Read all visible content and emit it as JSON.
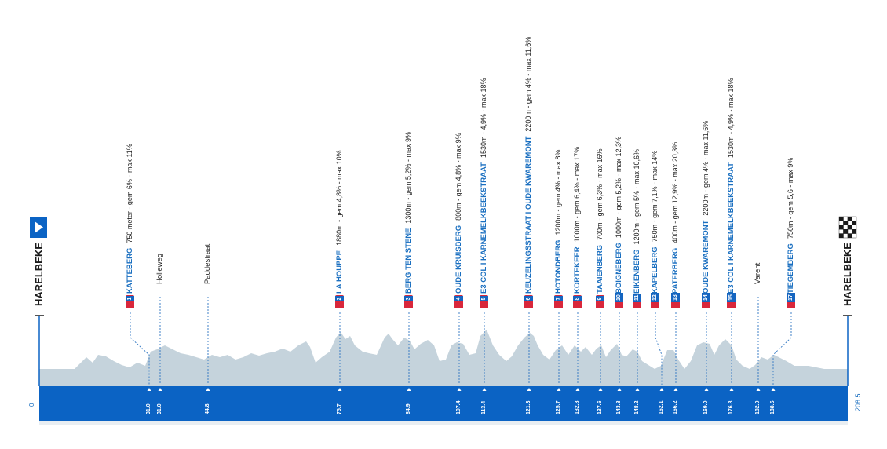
{
  "start_city": "HARELBEKE",
  "finish_city": "HARELBEKE",
  "distance_start": "0",
  "distance_end": "208.5",
  "colors": {
    "bar": "#0b63c4",
    "terrain": "#c5d3dc",
    "accent_red": "#d9273b",
    "climb_blue": "#1a6fc0"
  },
  "icons": {
    "start": "start-play-icon",
    "finish": "chequered-flag-icon"
  },
  "markers": [
    {
      "km": "31.0",
      "kind": "climb",
      "num": "1",
      "name": "KATTEBERG",
      "info": "750 meter  -  gem 6%  -  max 11%"
    },
    {
      "km": "31.0",
      "kind": "place",
      "name": "Holleweg"
    },
    {
      "km": "44.8",
      "kind": "place",
      "name": "Paddestraat"
    },
    {
      "km": "75.7",
      "kind": "climb",
      "num": "2",
      "name": "LA HOUPPE",
      "info": "1880m  -  gem 4,8%  -  max 10%"
    },
    {
      "km": "84.9",
      "kind": "climb",
      "num": "3",
      "name": "BERG TEN STENE",
      "info": "1300m  -  gem 5,2%  -  max 9%"
    },
    {
      "km": "107.4",
      "kind": "climb",
      "num": "4",
      "name": "OUDE KRUISBERG",
      "info": "800m  -  gem 4,8%  -  max 9%"
    },
    {
      "km": "113.4",
      "kind": "climb",
      "num": "5",
      "name": "E3 COL I KARNEMELKBEEKSTRAAT",
      "info": "1530m  -  4,9%  -  max 18%"
    },
    {
      "km": "121.3",
      "kind": "climb",
      "num": "6",
      "name": "KEUZELINGSSTRAAT I OUDE KWAREMONT",
      "info": "2200m  -  gem 4%  -  max 11,6%"
    },
    {
      "km": "125.7",
      "kind": "climb",
      "num": "7",
      "name": "HOTONDBERG",
      "info": "1200m  -  gem 4%  -  max 8%"
    },
    {
      "km": "132.8",
      "kind": "climb",
      "num": "8",
      "name": "KORTEKEER",
      "info": "1000m  -  gem 6,4%  -  max 17%"
    },
    {
      "km": "137.6",
      "kind": "climb",
      "num": "9",
      "name": "TAAIENBERG",
      "info": "700m  -  gem 6,3%  -  max 16%"
    },
    {
      "km": "143.8",
      "kind": "climb",
      "num": "10",
      "name": "BOIGNEBERG",
      "info": "1000m  -  gem 5,2%  -  max 12,3%"
    },
    {
      "km": "148.2",
      "kind": "climb",
      "num": "11",
      "name": "EIKENBERG",
      "info": "1200m  -  gem 5%  -  max 10,6%"
    },
    {
      "km": "162.1",
      "kind": "climb",
      "num": "12",
      "name": "KAPELBERG",
      "info": "750m  -  gem 7,1%  -  max 14%"
    },
    {
      "km": "166.2",
      "kind": "climb",
      "num": "13",
      "name": "PATERBERG",
      "info": "400m  -  gem 12,9%  -  max 20,3%"
    },
    {
      "km": "169.0",
      "kind": "climb",
      "num": "14",
      "name": "OUDE KWAREMONT",
      "info": "2200m  -  gem 4%  -  max 11,6%"
    },
    {
      "km": "176.8",
      "kind": "climb",
      "num": "15",
      "name": "E3 COL I KARNEMELKBEEKSTRAAT",
      "info": "1530m  -  4,9%  -  max 18%"
    },
    {
      "km": "182.0",
      "kind": "place",
      "name": "Varent"
    },
    {
      "km": "188.5",
      "kind": "climb",
      "num": "17",
      "name": "TIEGEMBERG",
      "info": "750m  -  gem 5,6  -  max 9%"
    }
  ]
}
